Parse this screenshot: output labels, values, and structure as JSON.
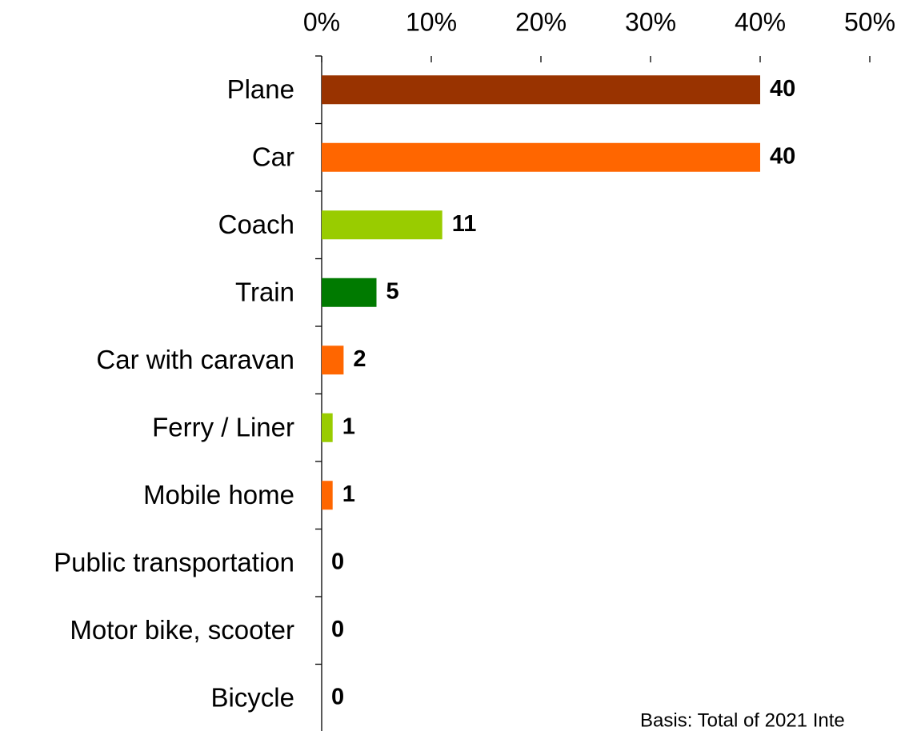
{
  "chart_data": {
    "type": "barh",
    "categories": [
      "Plane",
      "Car",
      "Coach",
      "Train",
      "Car with caravan",
      "Ferry / Liner",
      "Mobile home",
      "Public transportation",
      "Motor bike, scooter",
      "Bicycle"
    ],
    "values": [
      40,
      40,
      11,
      5,
      2,
      1,
      1,
      0,
      0,
      0
    ],
    "colors": [
      "#993300",
      "#ff6600",
      "#99cc00",
      "#007a00",
      "#ff6600",
      "#99cc00",
      "#ff6600",
      "#99cc00",
      "#ff6600",
      "#99cc00"
    ],
    "xlim": [
      0,
      50
    ],
    "xticks": [
      {
        "value": 0,
        "label": "0%"
      },
      {
        "value": 10,
        "label": "10%"
      },
      {
        "value": 20,
        "label": "20%"
      },
      {
        "value": 30,
        "label": "30%"
      },
      {
        "value": 40,
        "label": "40%"
      },
      {
        "value": 50,
        "label": "50%"
      }
    ],
    "annotation": "Basis: Total of 2021 Inte"
  }
}
